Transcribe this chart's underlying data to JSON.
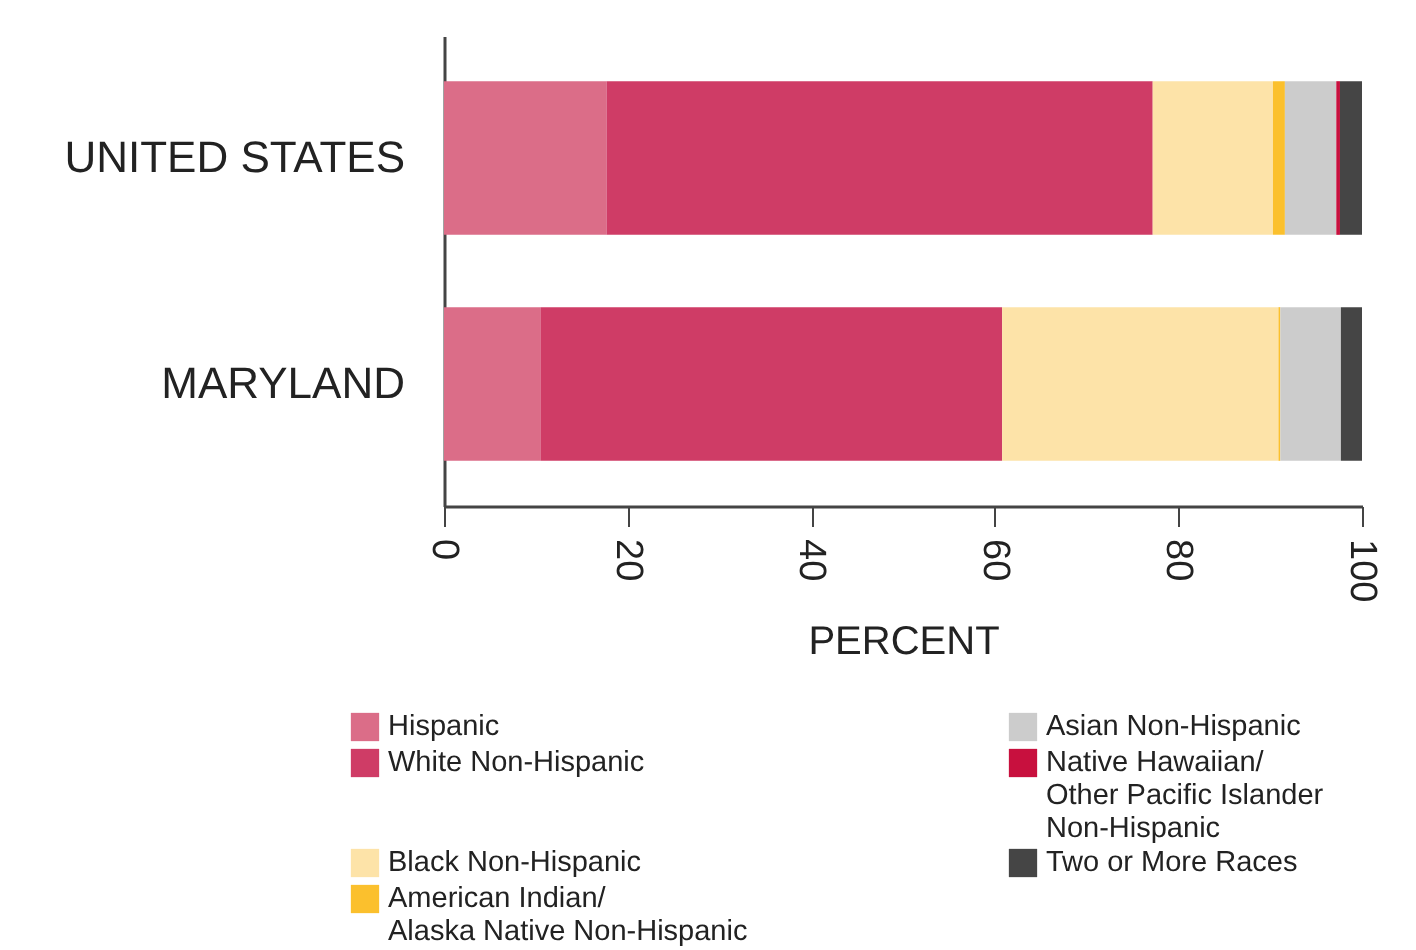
{
  "chart_data": {
    "type": "bar",
    "orientation": "horizontal",
    "stacked": true,
    "xlabel": "PERCENT",
    "categories": [
      "UNITED STATES",
      "MARYLAND"
    ],
    "xlim": [
      0,
      100
    ],
    "xticks": [
      0,
      20,
      40,
      60,
      80,
      100
    ],
    "grid": false,
    "legend": "bottom",
    "series": [
      {
        "name": "Hispanic",
        "color": "#db6d88",
        "values": [
          17.7,
          10.5
        ]
      },
      {
        "name": "White Non-Hispanic",
        "color": "#cf3c66",
        "values": [
          59.5,
          50.3
        ]
      },
      {
        "name": "Black Non-Hispanic",
        "color": "#fde3a8",
        "values": [
          13.1,
          30.1
        ]
      },
      {
        "name": "American Indian/ Alaska Native Non-Hispanic",
        "color": "#fbc02d",
        "values": [
          1.3,
          0.2
        ]
      },
      {
        "name": "Asian Non-Hispanic",
        "color": "#cccccc",
        "values": [
          5.6,
          6.6
        ]
      },
      {
        "name": "Native Hawaiian/ Other Pacific Islander Non-Hispanic",
        "color": "#c8103e",
        "values": [
          0.4,
          0
        ]
      },
      {
        "name": "Two or More Races",
        "color": "#454545",
        "values": [
          2.4,
          2.3
        ]
      }
    ]
  }
}
